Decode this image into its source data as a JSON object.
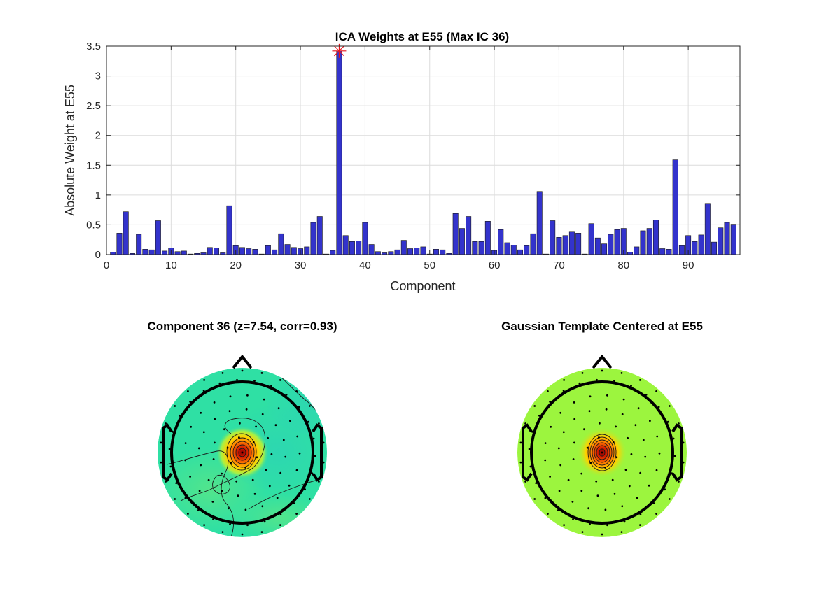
{
  "chart_data": [
    {
      "type": "bar",
      "title": "ICA Weights at E55 (Max IC 36)",
      "xlabel": "Component",
      "ylabel": "Absolute Weight at E55",
      "xlim": [
        0,
        98
      ],
      "ylim": [
        0,
        3.5
      ],
      "xticks": [
        0,
        10,
        20,
        30,
        40,
        50,
        60,
        70,
        80,
        90
      ],
      "yticks": [
        0,
        0.5,
        1,
        1.5,
        2,
        2.5,
        3,
        3.5
      ],
      "grid": true,
      "bar_color": "#3333cc",
      "highlight_color": "#e8141b",
      "highlight_component": 36,
      "categories": [
        1,
        2,
        3,
        4,
        5,
        6,
        7,
        8,
        9,
        10,
        11,
        12,
        13,
        14,
        15,
        16,
        17,
        18,
        19,
        20,
        21,
        22,
        23,
        24,
        25,
        26,
        27,
        28,
        29,
        30,
        31,
        32,
        33,
        34,
        35,
        36,
        37,
        38,
        39,
        40,
        41,
        42,
        43,
        44,
        45,
        46,
        47,
        48,
        49,
        50,
        51,
        52,
        53,
        54,
        55,
        56,
        57,
        58,
        59,
        60,
        61,
        62,
        63,
        64,
        65,
        66,
        67,
        68,
        69,
        70,
        71,
        72,
        73,
        74,
        75,
        76,
        77,
        78,
        79,
        80,
        81,
        82,
        83,
        84,
        85,
        86,
        87,
        88,
        89,
        90,
        91,
        92,
        93,
        94,
        95,
        96,
        97
      ],
      "values": [
        0.04,
        0.36,
        0.72,
        0.02,
        0.34,
        0.09,
        0.08,
        0.57,
        0.06,
        0.11,
        0.05,
        0.06,
        0.01,
        0.02,
        0.03,
        0.12,
        0.11,
        0.03,
        0.82,
        0.15,
        0.12,
        0.1,
        0.09,
        0.01,
        0.15,
        0.08,
        0.35,
        0.17,
        0.12,
        0.1,
        0.13,
        0.54,
        0.64,
        0.01,
        0.07,
        3.42,
        0.32,
        0.22,
        0.23,
        0.54,
        0.17,
        0.05,
        0.03,
        0.05,
        0.08,
        0.24,
        0.1,
        0.11,
        0.13,
        0.01,
        0.09,
        0.08,
        0.02,
        0.69,
        0.44,
        0.64,
        0.22,
        0.22,
        0.56,
        0.07,
        0.42,
        0.2,
        0.16,
        0.08,
        0.15,
        0.35,
        1.06,
        0.01,
        0.57,
        0.29,
        0.32,
        0.39,
        0.36,
        0.01,
        0.52,
        0.28,
        0.18,
        0.34,
        0.42,
        0.44,
        0.04,
        0.13,
        0.4,
        0.44,
        0.58,
        0.1,
        0.09,
        1.59,
        0.15,
        0.32,
        0.22,
        0.33,
        0.86,
        0.21,
        0.45,
        0.54,
        0.51
      ]
    },
    {
      "type": "heatmap",
      "title": "Component 36 (z=7.54, corr=0.93)",
      "peak_electrode": "E55",
      "background_color": "#2fe0a4",
      "peak_color": "#a00000"
    },
    {
      "type": "heatmap",
      "title": "Gaussian Template Centered at E55",
      "peak_electrode": "E55",
      "background_color": "#9cf53e",
      "peak_color": "#a00000"
    }
  ]
}
